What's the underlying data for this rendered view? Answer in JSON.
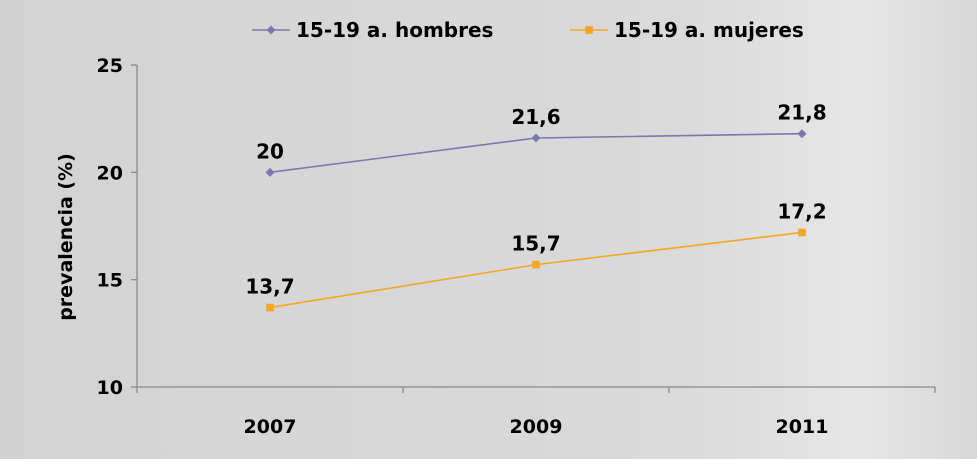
{
  "chart_data": {
    "type": "line",
    "categories": [
      "2007",
      "2009",
      "2011"
    ],
    "series": [
      {
        "name": "15-19 a. hombres",
        "values": [
          20,
          21.6,
          21.8
        ],
        "labels": [
          "20",
          "21,6",
          "21,8"
        ],
        "color": "#7b78b0",
        "marker": "diamond"
      },
      {
        "name": "15-19 a. mujeres",
        "values": [
          13.7,
          15.7,
          17.2
        ],
        "labels": [
          "13,7",
          "15,7",
          "17,2"
        ],
        "color": "#f5a623",
        "marker": "square"
      }
    ],
    "title": "",
    "xlabel": "",
    "ylabel": "prevalencia (%)",
    "ylim": [
      10,
      25
    ],
    "yticks": [
      10,
      15,
      20,
      25
    ],
    "legend_position": "top",
    "grid": false
  }
}
